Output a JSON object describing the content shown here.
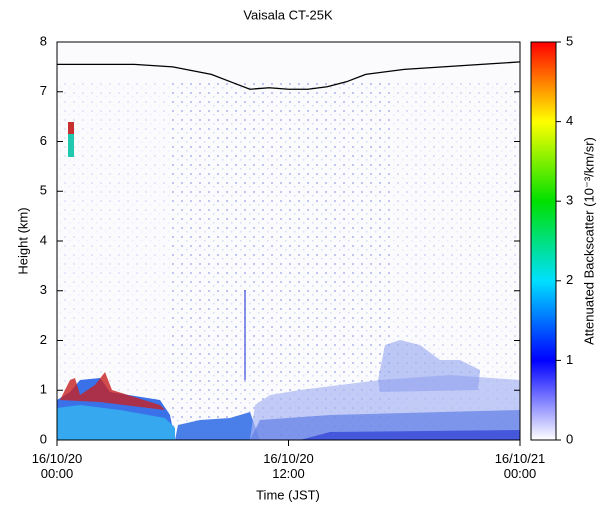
{
  "chart_data": {
    "type": "line",
    "title": "Vaisala CT-25K",
    "x_label": "Time (JST)",
    "y_label": "Height (km)",
    "colorbar_label": "Attenuated Backscatter (10⁻³/km/sr)",
    "xlim": [
      0,
      24
    ],
    "xticks": [
      {
        "value": 0,
        "label": "16/10/20\n00:00"
      },
      {
        "value": 12,
        "label": "16/10/20\n12:00"
      },
      {
        "value": 24,
        "label": "16/10/21\n00:00"
      }
    ],
    "ylim": [
      0,
      8
    ],
    "yticks": [
      0,
      1,
      2,
      3,
      4,
      5,
      6,
      7,
      8
    ],
    "clim": [
      0,
      5
    ],
    "cticks": [
      0,
      1,
      2,
      3,
      4,
      5
    ],
    "colormap": [
      "#ffffff",
      "#0000ff",
      "#00e0ff",
      "#00e000",
      "#ffff00",
      "#ff0000"
    ],
    "series": [
      {
        "color": "#000000",
        "x": [
          0,
          2,
          4,
          6,
          8,
          9,
          10,
          11,
          12,
          13,
          14,
          15,
          16,
          18,
          20,
          22,
          24
        ],
        "values": [
          7.55,
          7.55,
          7.55,
          7.5,
          7.35,
          7.2,
          7.05,
          7.08,
          7.05,
          7.05,
          7.1,
          7.2,
          7.35,
          7.45,
          7.5,
          7.55,
          7.6
        ]
      }
    ]
  }
}
